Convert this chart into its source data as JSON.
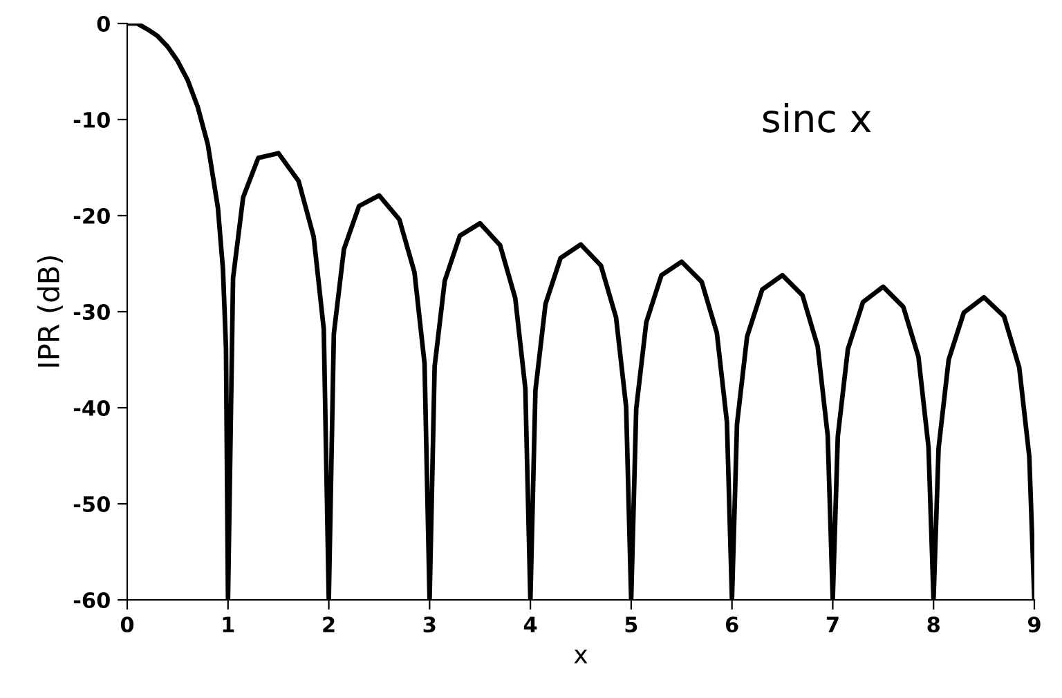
{
  "chart_data": {
    "type": "line",
    "xlabel": "x",
    "ylabel": "IPR (dB)",
    "annotations": [
      "sinc x"
    ],
    "xlim": [
      0,
      9
    ],
    "ylim": [
      -60,
      0
    ],
    "xticks": [
      0,
      1,
      2,
      3,
      4,
      5,
      6,
      7,
      8,
      9
    ],
    "yticks": [
      0,
      -10,
      -20,
      -30,
      -40,
      -50,
      -60
    ],
    "grid": false,
    "legend": false,
    "series": [
      {
        "color": "#000000",
        "x": [
          0,
          0.1,
          0.2,
          0.3,
          0.4,
          0.5,
          0.6,
          0.7,
          0.8,
          0.9,
          0.95,
          0.98,
          1,
          1.05,
          1.15,
          1.3,
          1.5,
          1.7,
          1.85,
          1.95,
          2,
          2.05,
          2.15,
          2.3,
          2.5,
          2.7,
          2.85,
          2.95,
          3,
          3.05,
          3.15,
          3.3,
          3.5,
          3.7,
          3.85,
          3.95,
          4,
          4.05,
          4.15,
          4.3,
          4.5,
          4.7,
          4.85,
          4.95,
          5,
          5.05,
          5.15,
          5.3,
          5.5,
          5.7,
          5.85,
          5.95,
          6,
          6.05,
          6.15,
          6.3,
          6.5,
          6.7,
          6.85,
          6.95,
          7,
          7.05,
          7.15,
          7.3,
          7.5,
          7.7,
          7.85,
          7.95,
          8,
          8.05,
          8.15,
          8.3,
          8.5,
          8.7,
          8.85,
          8.95,
          9
        ],
        "values": [
          0,
          0,
          -0.6,
          -1.3,
          -2.4,
          -3.9,
          -5.9,
          -8.7,
          -12.6,
          -19.2,
          -25.6,
          -33.8,
          -60,
          -26.5,
          -18.1,
          -14.0,
          -13.5,
          -16.4,
          -22.2,
          -31.8,
          -60,
          -32.3,
          -23.5,
          -19.0,
          -17.9,
          -20.4,
          -25.9,
          -35.4,
          -60,
          -35.7,
          -26.8,
          -22.1,
          -20.8,
          -23.1,
          -28.6,
          -38.0,
          -60,
          -38.2,
          -29.2,
          -24.4,
          -23.0,
          -25.2,
          -30.6,
          -39.9,
          -60,
          -40.1,
          -31.1,
          -26.2,
          -24.8,
          -26.9,
          -32.2,
          -41.5,
          -60,
          -41.7,
          -32.6,
          -27.7,
          -26.2,
          -28.3,
          -33.6,
          -42.9,
          -60,
          -43.0,
          -33.9,
          -29.0,
          -27.4,
          -29.5,
          -34.7,
          -44.1,
          -60,
          -44.2,
          -35.0,
          -30.1,
          -28.5,
          -30.5,
          -35.8,
          -45.1,
          -60
        ]
      }
    ]
  }
}
